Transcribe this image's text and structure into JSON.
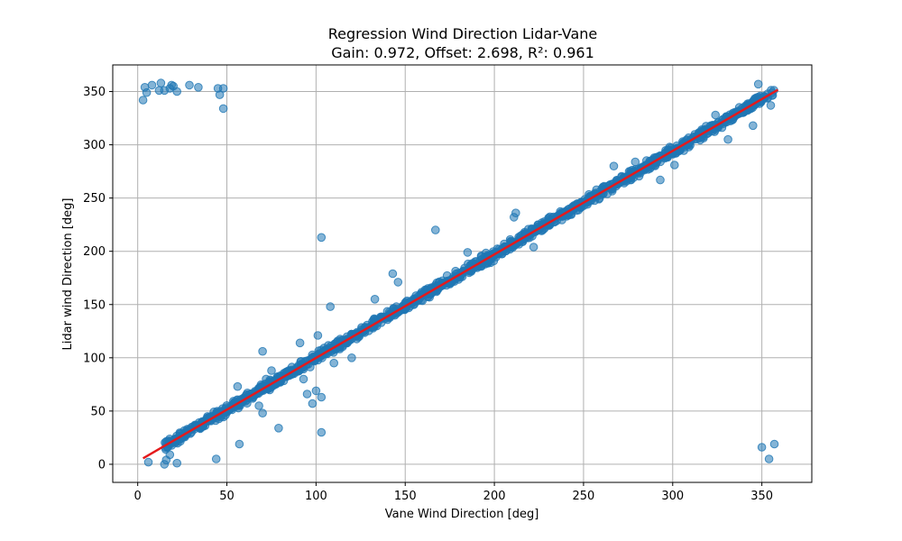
{
  "chart_data": {
    "type": "scatter",
    "title": "Regression Wind Direction Lidar-Vane",
    "subtitle": "Gain: 0.972, Offset: 2.698, R²: 0.961",
    "xlabel": "Vane Wind Direction [deg]",
    "ylabel": "Lidar wind Direction [deg]",
    "xlim": [
      -14,
      378
    ],
    "ylim": [
      -17,
      375
    ],
    "xticks": [
      0,
      50,
      100,
      150,
      200,
      250,
      300,
      350
    ],
    "yticks": [
      0,
      50,
      100,
      150,
      200,
      250,
      300,
      350
    ],
    "grid": true,
    "colors": {
      "points": "#1f77b4",
      "fit": "#e41a1c"
    },
    "fit_line": {
      "gain": 0.972,
      "offset": 2.698,
      "x_range": [
        3,
        359
      ]
    },
    "outliers": [
      [
        3,
        342
      ],
      [
        4,
        354
      ],
      [
        5,
        349
      ],
      [
        8,
        356
      ],
      [
        12,
        351
      ],
      [
        13,
        358
      ],
      [
        15,
        351
      ],
      [
        18,
        353
      ],
      [
        19,
        356
      ],
      [
        20,
        355
      ],
      [
        22,
        350
      ],
      [
        29,
        356
      ],
      [
        34,
        354
      ],
      [
        45,
        353
      ],
      [
        46,
        347
      ],
      [
        48,
        353
      ],
      [
        48,
        334
      ],
      [
        350,
        16
      ],
      [
        354,
        5
      ],
      [
        357,
        19
      ],
      [
        6,
        2
      ],
      [
        15,
        0
      ],
      [
        22,
        1
      ],
      [
        44,
        5
      ],
      [
        16,
        4
      ],
      [
        18,
        9
      ],
      [
        57,
        19
      ],
      [
        79,
        34
      ],
      [
        103,
        30
      ],
      [
        103,
        213
      ],
      [
        167,
        220
      ],
      [
        212,
        236
      ],
      [
        211,
        232
      ],
      [
        143,
        179
      ],
      [
        146,
        171
      ],
      [
        133,
        155
      ],
      [
        108,
        148
      ],
      [
        70,
        106
      ],
      [
        103,
        63
      ],
      [
        98,
        57
      ],
      [
        100,
        69
      ],
      [
        95,
        66
      ],
      [
        93,
        80
      ],
      [
        110,
        95
      ],
      [
        120,
        100
      ],
      [
        101,
        121
      ],
      [
        91,
        114
      ],
      [
        75,
        88
      ],
      [
        72,
        80
      ],
      [
        68,
        55
      ],
      [
        70,
        48
      ],
      [
        56,
        73
      ],
      [
        222,
        204
      ],
      [
        267,
        280
      ],
      [
        279,
        284
      ],
      [
        293,
        267
      ],
      [
        301,
        281
      ],
      [
        322,
        317
      ],
      [
        331,
        305
      ],
      [
        345,
        318
      ],
      [
        348,
        357
      ],
      [
        355,
        337
      ],
      [
        324,
        328
      ],
      [
        185,
        199
      ],
      [
        196,
        193
      ],
      [
        160,
        161
      ]
    ]
  }
}
